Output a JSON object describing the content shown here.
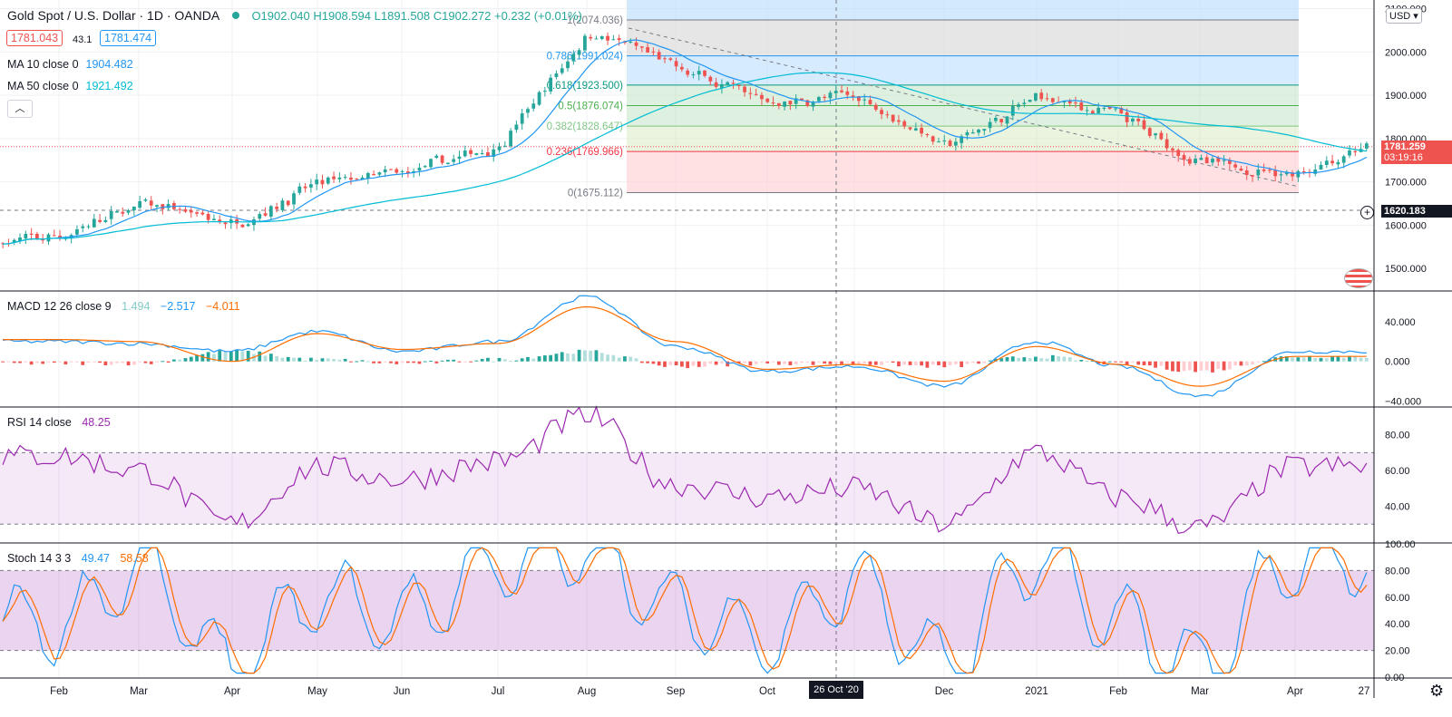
{
  "header": {
    "symbol_title": "Gold Spot / U.S. Dollar · 1D · OANDA",
    "open": "O1902.040",
    "high": "H1908.594",
    "low": "L1891.508",
    "close": "C1902.272",
    "change": "+0.232 (+0.01%)",
    "bid": "1781.043",
    "spread": "43.1",
    "ask": "1781.474",
    "ma10_label": "MA 10 close 0",
    "ma10_value": "1904.482",
    "ma50_label": "MA 50 close 0",
    "ma50_value": "1921.492",
    "currency": "USD"
  },
  "price_axis": {
    "ticks": [
      "2100.000",
      "2000.000",
      "1900.000",
      "1800.000",
      "1700.000",
      "1600.000",
      "1500.000"
    ],
    "current_price": "1781.259",
    "countdown": "03:19:16",
    "crosshair_price": "1620.183"
  },
  "fib_labels": [
    {
      "text": "1(2074.036)",
      "value": 2074.036
    },
    {
      "text": "0.786(1991.024)",
      "value": 1991.024
    },
    {
      "text": "0.618(1923.500)",
      "value": 1923.5
    },
    {
      "text": "0.5(1876.074)",
      "value": 1876.074
    },
    {
      "text": "0.382(1828.647)",
      "value": 1828.647
    },
    {
      "text": "0.236(1769.966)",
      "value": 1769.966
    },
    {
      "text": "0(1675.112)",
      "value": 1675.112
    }
  ],
  "macd": {
    "label": "MACD 12 26 close 9",
    "hist": "1.494",
    "macd": "−2.517",
    "signal": "−4.011",
    "ticks": [
      "40.000",
      "0.000",
      "−40.000"
    ]
  },
  "rsi": {
    "label": "RSI 14 close",
    "value": "48.25",
    "ticks": [
      "80.00",
      "60.00",
      "40.00"
    ]
  },
  "stoch": {
    "label": "Stoch 14 3 3",
    "k": "49.47",
    "d": "58.58",
    "ticks": [
      "100.00",
      "80.00",
      "60.00",
      "40.00",
      "20.00",
      "0.00"
    ]
  },
  "time_axis": {
    "labels": [
      "Feb",
      "Mar",
      "Apr",
      "May",
      "Jun",
      "Jul",
      "Aug",
      "Sep",
      "Oct",
      "Nov",
      "Dec",
      "2021",
      "Feb",
      "Mar",
      "Apr",
      "27"
    ],
    "crosshair_date": "26 Oct '20"
  },
  "colors": {
    "up": "#26a69a",
    "down": "#ef5350",
    "ma10": "#2196f3",
    "ma50": "#00bcd4",
    "macd_line": "#2196f3",
    "signal_line": "#ff6d00",
    "rsi_line": "#9c27b0",
    "stoch_k": "#2196f3",
    "stoch_d": "#ff6d00"
  },
  "chart_data": [
    {
      "type": "candlestick",
      "title": "Gold Spot / U.S. Dollar · 1D · OANDA",
      "x_categories": [
        "Feb",
        "Mar",
        "Apr",
        "May",
        "Jun",
        "Jul",
        "Aug",
        "Sep",
        "Oct",
        "Nov",
        "Dec",
        "2021",
        "Feb",
        "Mar",
        "Apr"
      ],
      "close_by_month": [
        1575,
        1650,
        1600,
        1700,
        1720,
        1785,
        2050,
        1960,
        1880,
        1900,
        1780,
        1900,
        1850,
        1740,
        1720
      ],
      "series": [
        {
          "name": "MA 10 close 0",
          "last": 1904.482
        },
        {
          "name": "MA 50 close 0",
          "last": 1921.492
        }
      ],
      "ylim": [
        1450,
        2120
      ]
    },
    {
      "type": "line",
      "title": "MACD 12 26 close 9",
      "x_categories": [
        "Feb",
        "Mar",
        "Apr",
        "May",
        "Jun",
        "Jul",
        "Aug",
        "Sep",
        "Oct",
        "Nov",
        "Dec",
        "2021",
        "Feb",
        "Mar",
        "Apr"
      ],
      "series": [
        {
          "name": "MACD",
          "values": [
            20,
            18,
            10,
            30,
            10,
            20,
            65,
            15,
            -10,
            -5,
            -25,
            20,
            -5,
            -35,
            10
          ]
        },
        {
          "name": "Signal",
          "values": [
            22,
            20,
            0,
            28,
            12,
            18,
            55,
            20,
            -8,
            -3,
            -20,
            15,
            -3,
            -25,
            5
          ]
        }
      ],
      "ylim": [
        -45,
        70
      ]
    },
    {
      "type": "line",
      "title": "RSI 14 close",
      "x_categories": [
        "Feb",
        "Mar",
        "Apr",
        "May",
        "Jun",
        "Jul",
        "Aug",
        "Sep",
        "Oct",
        "Nov",
        "Dec",
        "2021",
        "Feb",
        "Mar",
        "Apr"
      ],
      "series": [
        {
          "name": "RSI",
          "values": [
            68,
            60,
            30,
            62,
            55,
            65,
            90,
            52,
            45,
            50,
            30,
            70,
            45,
            28,
            62
          ]
        }
      ],
      "ylim": [
        20,
        95
      ]
    },
    {
      "type": "line",
      "title": "Stoch 14 3 3",
      "x_categories": [
        "Feb",
        "Mar",
        "Apr",
        "May",
        "Jun",
        "Jul",
        "Aug",
        "Sep",
        "Oct",
        "Nov",
        "Dec",
        "2021",
        "Feb",
        "Mar",
        "Apr"
      ],
      "series": [
        {
          "name": "K",
          "values": [
            40,
            80,
            10,
            60,
            45,
            85,
            95,
            50,
            30,
            70,
            10,
            90,
            40,
            10,
            88
          ]
        },
        {
          "name": "D",
          "values": [
            45,
            75,
            15,
            58,
            48,
            82,
            93,
            52,
            32,
            68,
            12,
            88,
            42,
            12,
            86
          ]
        }
      ],
      "ylim": [
        0,
        100
      ]
    }
  ]
}
